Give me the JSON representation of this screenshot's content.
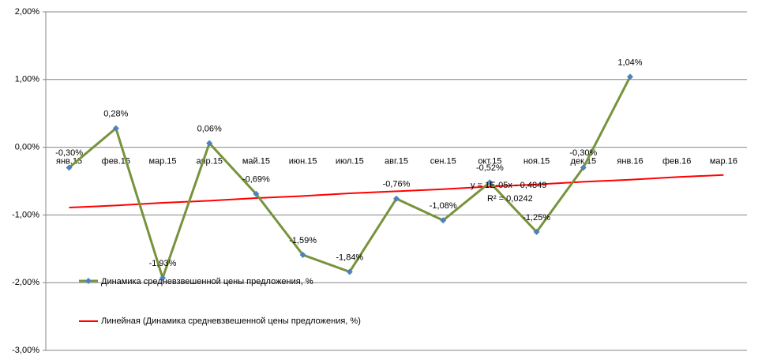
{
  "chart_data": {
    "type": "line",
    "categories": [
      "янв.15",
      "фев.15",
      "мар.15",
      "апр.15",
      "май.15",
      "июн.15",
      "июл.15",
      "авг.15",
      "сен.15",
      "окт.15",
      "ноя.15",
      "дек.15",
      "янв.16",
      "фев.16",
      "мар.16"
    ],
    "series": [
      {
        "name": "Динамика средневзвешенной  цены предложения,  %",
        "color": "#77933c",
        "marker_color": "#4f81bd",
        "values": [
          -0.3,
          0.28,
          -1.93,
          0.06,
          -0.69,
          -1.59,
          -1.84,
          -0.76,
          -1.08,
          -0.52,
          -1.25,
          -0.3,
          1.04,
          null,
          null
        ],
        "value_labels": [
          "-0,30%",
          "0,28%",
          "-1,93%",
          "0,06%",
          "-0,69%",
          "-1,59%",
          "-1,84%",
          "-0,76%",
          "-1,08%",
          "-0,52%",
          "-1,25%",
          "-0,30%",
          "1,04%",
          null,
          null
        ]
      },
      {
        "name": "Линейная (Динамика средневзвешенной  цены предложения, %)",
        "color": "#ff0000",
        "values": [
          -0.89,
          -0.86,
          -0.82,
          -0.79,
          -0.75,
          -0.72,
          -0.68,
          -0.65,
          -0.62,
          -0.58,
          -0.55,
          -0.51,
          -0.48,
          -0.44,
          -0.41
        ]
      }
    ],
    "annotations": [
      "y = 1E-05x - 0,4849",
      "R² = 0,0242"
    ],
    "ylim": [
      -3,
      2
    ],
    "yticks": [
      {
        "value": -3,
        "label": "-3,00%"
      },
      {
        "value": -2,
        "label": "-2,00%"
      },
      {
        "value": -1,
        "label": "-1,00%"
      },
      {
        "value": 0,
        "label": "0,00%"
      },
      {
        "value": 1,
        "label": "1,00%"
      },
      {
        "value": 2,
        "label": "2,00%"
      }
    ],
    "grid": true
  }
}
